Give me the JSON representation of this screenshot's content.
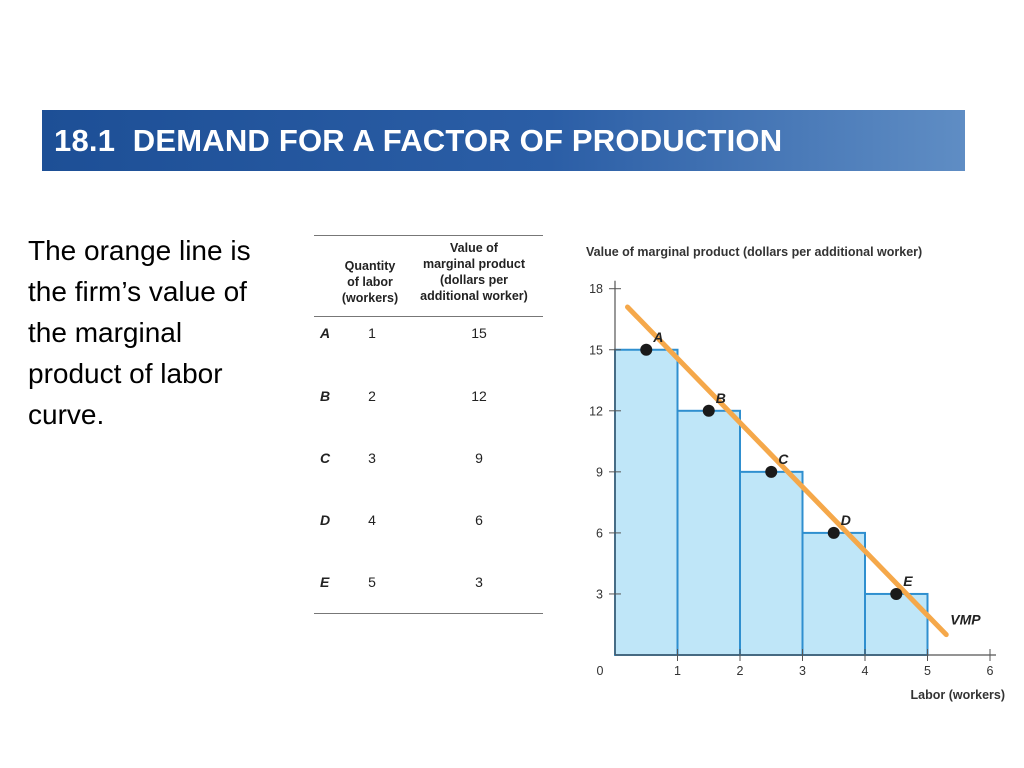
{
  "slide": {
    "title": "18.1  DEMAND FOR A FACTOR OF PRODUCTION",
    "caption": "The orange line is the firm’s value of the marginal product of labor curve."
  },
  "table": {
    "headers": [
      "Quantity\nof labor\n(workers)",
      "Value of\nmarginal product\n(dollars per\nadditional worker)"
    ],
    "rows": [
      {
        "point": "A",
        "labor": "1",
        "vmp": "15"
      },
      {
        "point": "B",
        "labor": "2",
        "vmp": "12"
      },
      {
        "point": "C",
        "labor": "3",
        "vmp": "9"
      },
      {
        "point": "D",
        "labor": "4",
        "vmp": "6"
      },
      {
        "point": "E",
        "labor": "5",
        "vmp": "3"
      }
    ]
  },
  "chart_data": {
    "type": "bar",
    "ylabel": "Value of marginal product (dollars per additional worker)",
    "xlabel": "Labor (workers)",
    "xlim": [
      0,
      6
    ],
    "ylim": [
      0,
      18
    ],
    "xticks": [
      "0",
      "1",
      "2",
      "3",
      "4",
      "5",
      "6"
    ],
    "yticks": [
      "3",
      "6",
      "9",
      "12",
      "15",
      "18"
    ],
    "bars": [
      {
        "x0": 0,
        "x1": 1,
        "value": 15
      },
      {
        "x0": 1,
        "x1": 2,
        "value": 12
      },
      {
        "x0": 2,
        "x1": 3,
        "value": 9
      },
      {
        "x0": 3,
        "x1": 4,
        "value": 6
      },
      {
        "x0": 4,
        "x1": 5,
        "value": 3
      }
    ],
    "points": [
      {
        "label": "A",
        "x": 0.5,
        "y": 15
      },
      {
        "label": "B",
        "x": 1.5,
        "y": 12
      },
      {
        "label": "C",
        "x": 2.5,
        "y": 9
      },
      {
        "label": "D",
        "x": 3.5,
        "y": 6
      },
      {
        "label": "E",
        "x": 4.5,
        "y": 3
      }
    ],
    "line": {
      "name": "VMP",
      "x": [
        0.2,
        5.3
      ],
      "y": [
        17.1,
        1.0
      ]
    },
    "colors": {
      "bar_fill": "#bfe6f8",
      "bar_stroke": "#2f8fcf",
      "line": "#f5a84a",
      "point": "#1a1a1a"
    }
  }
}
